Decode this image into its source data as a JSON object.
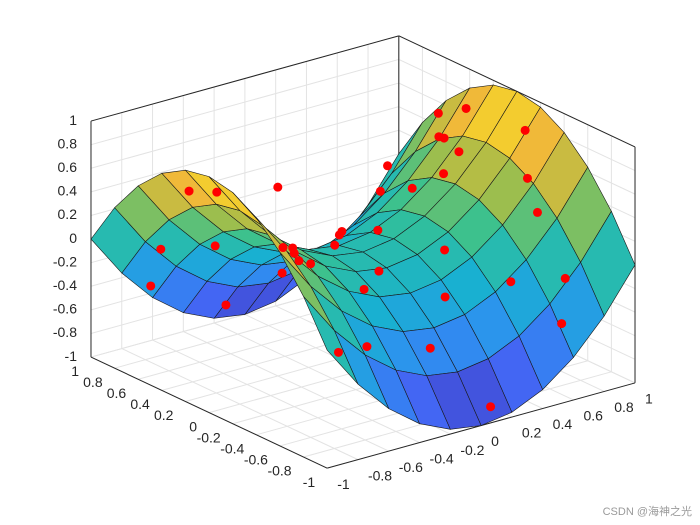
{
  "chart_data": {
    "type": "surface-scatter3",
    "xlim": [
      -1,
      1
    ],
    "ylim": [
      -1,
      1
    ],
    "zlim": [
      -1,
      1
    ],
    "xticks": [
      -1,
      -0.8,
      -0.6,
      -0.4,
      -0.2,
      0,
      0.2,
      0.4,
      0.6,
      0.8,
      1
    ],
    "yticks": [
      -1,
      -0.8,
      -0.6,
      -0.4,
      -0.2,
      0,
      0.2,
      0.4,
      0.6,
      0.8,
      1
    ],
    "zticks": [
      -1,
      -0.8,
      -0.6,
      -0.4,
      -0.2,
      0,
      0.2,
      0.4,
      0.6,
      0.8,
      1
    ],
    "grid": true,
    "view": {
      "azimuth": -37.5,
      "elevation": 30
    },
    "colormap": [
      "#3e26a8",
      "#4367f5",
      "#2d92ef",
      "#18b2cf",
      "#36c191",
      "#a7be47",
      "#f0b83a",
      "#f9fb15"
    ],
    "surface": {
      "x": [
        -1,
        -0.8,
        -0.6,
        -0.4,
        -0.2,
        0,
        0.2,
        0.4,
        0.6,
        0.8,
        1
      ],
      "y": [
        -1,
        -0.8,
        -0.6,
        -0.4,
        -0.2,
        0,
        0.2,
        0.4,
        0.6,
        0.8,
        1
      ],
      "z": [
        [
          0,
          -0.36,
          -0.64,
          -0.84,
          -0.96,
          -1,
          -0.96,
          -0.84,
          -0.64,
          -0.36,
          0
        ],
        [
          0.36,
          0,
          -0.28,
          -0.48,
          -0.6,
          -0.64,
          -0.6,
          -0.48,
          -0.28,
          0,
          0.36
        ],
        [
          0.64,
          0.28,
          0,
          -0.2,
          -0.32,
          -0.36,
          -0.32,
          -0.2,
          0,
          0.28,
          0.64
        ],
        [
          0.84,
          0.48,
          0.2,
          0,
          -0.12,
          -0.16,
          -0.12,
          0,
          0.2,
          0.48,
          0.84
        ],
        [
          0.96,
          0.6,
          0.32,
          0.12,
          0,
          -0.04,
          0,
          0.12,
          0.32,
          0.6,
          0.96
        ],
        [
          1,
          0.64,
          0.36,
          0.16,
          0.04,
          0,
          0.04,
          0.16,
          0.36,
          0.64,
          1
        ],
        [
          0.96,
          0.6,
          0.32,
          0.12,
          0,
          -0.04,
          0,
          0.12,
          0.32,
          0.6,
          0.96
        ],
        [
          0.84,
          0.48,
          0.2,
          0,
          -0.12,
          -0.16,
          -0.12,
          0,
          0.2,
          0.48,
          0.84
        ],
        [
          0.64,
          0.28,
          0,
          -0.2,
          -0.32,
          -0.36,
          -0.32,
          -0.2,
          0,
          0.28,
          0.64
        ],
        [
          0.36,
          0,
          -0.28,
          -0.48,
          -0.6,
          -0.64,
          -0.6,
          -0.48,
          -0.28,
          0,
          0.36
        ],
        [
          0,
          -0.36,
          -0.64,
          -0.84,
          -0.96,
          -1,
          -0.96,
          -0.84,
          -0.64,
          -0.36,
          0
        ]
      ]
    },
    "points": {
      "color": "#ff0000",
      "x": [
        -0.9,
        -0.8,
        -0.7,
        -0.6,
        -0.5,
        -0.85,
        -0.3,
        -0.2,
        -0.1,
        0,
        0.1,
        0.2,
        0.3,
        0.4,
        0.5,
        0.6,
        0.7,
        0.8,
        0.9,
        0.95,
        -0.95,
        -0.4,
        0.35,
        0.55,
        0.75,
        0.85,
        0.15,
        -0.15,
        0.45,
        0.65,
        -0.65,
        -0.75,
        0.25,
        -0.05,
        0.05,
        0.9,
        0.7,
        -0.55,
        0.6,
        0.8
      ],
      "y": [
        0.3,
        -0.5,
        0.8,
        -0.2,
        0.6,
        -0.9,
        -0.4,
        0.9,
        -0.7,
        0.2,
        -0.95,
        0.5,
        -0.3,
        0.7,
        -0.6,
        0.1,
        -0.8,
        0.4,
        -0.2,
        0.6,
        0,
        0.2,
        0.9,
        0.3,
        -0.5,
        0.9,
        -0.5,
        0.4,
        -0.1,
        0.7,
        0.95,
        -0.3,
        0.2,
        -0.2,
        0.75,
        0.3,
        0.1,
        -0.75,
        -0.9,
        -0.35
      ],
      "z": [
        0.7,
        0.45,
        -0.1,
        0.3,
        -0.05,
        -0.12,
        -0.02,
        -0.8,
        -0.45,
        0.05,
        -0.9,
        -0.25,
        0.05,
        -0.3,
        -0.15,
        0.4,
        -0.1,
        0.5,
        0.8,
        0.55,
        0.85,
        0.6,
        -0.65,
        0.2,
        0.3,
        0,
        -0.2,
        -0.1,
        0.85,
        -0.05,
        -0.5,
        0.45,
        0,
        -0.05,
        -0.55,
        0.75,
        0.55,
        -0.25,
        -0.4,
        0.5
      ]
    },
    "watermark": "CSDN @海神之光"
  }
}
